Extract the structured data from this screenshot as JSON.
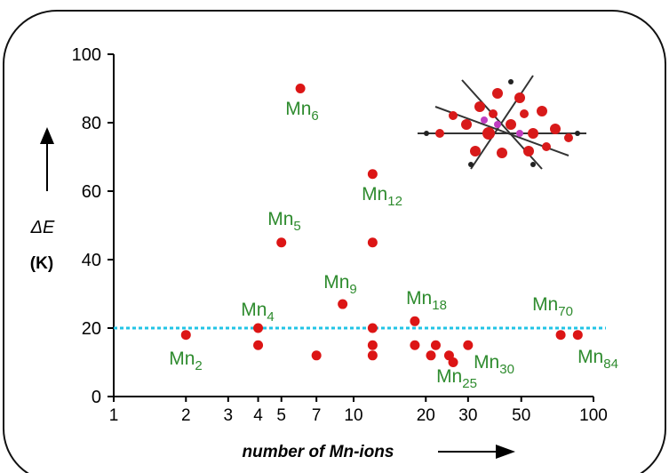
{
  "chart_data": {
    "type": "scatter",
    "x_label": "number of Mn-ions",
    "y_label": "ΔE",
    "y_unit": "(K)",
    "x": [
      2,
      4,
      4,
      5,
      6,
      7,
      9,
      12,
      12,
      12,
      12,
      12,
      18,
      18,
      21,
      22,
      25,
      26,
      30,
      73,
      86
    ],
    "values": [
      18,
      20,
      15,
      45,
      90,
      12,
      27,
      65,
      45,
      20,
      15,
      12,
      22,
      15,
      12,
      15,
      12,
      10,
      15,
      18,
      18
    ],
    "color": "#dc1515",
    "xlim": [
      1,
      100
    ],
    "ylim": [
      0,
      100
    ],
    "xticks": [
      1,
      2,
      3,
      4,
      5,
      7,
      10,
      20,
      30,
      50,
      100
    ],
    "yticks": [
      0,
      20,
      40,
      60,
      80,
      100
    ],
    "x_scale": "log",
    "reference_line": {
      "value": 20,
      "color": "#22c4e6"
    },
    "label_color": "#2e8b2e",
    "annotations": [
      {
        "text": "Mn",
        "sub": "2"
      },
      {
        "text": "Mn",
        "sub": "4"
      },
      {
        "text": "Mn",
        "sub": "5"
      },
      {
        "text": "Mn",
        "sub": "6"
      },
      {
        "text": "Mn",
        "sub": "9"
      },
      {
        "text": "Mn",
        "sub": "12"
      },
      {
        "text": "Mn",
        "sub": "18"
      },
      {
        "text": "Mn",
        "sub": "25"
      },
      {
        "text": "Mn",
        "sub": "30"
      },
      {
        "text": "Mn",
        "sub": "70"
      },
      {
        "text": "Mn",
        "sub": "84"
      }
    ]
  }
}
